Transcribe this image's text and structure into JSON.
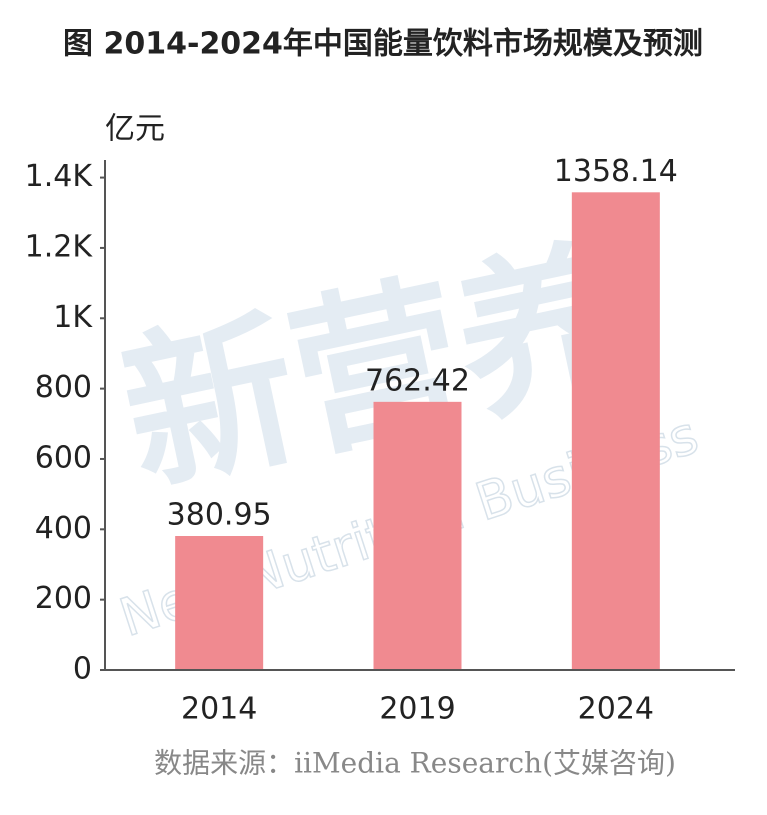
{
  "chart_data": {
    "type": "bar",
    "title": "图 2014-2024年中国能量饮料市场规模及预测",
    "y_label": "亿元",
    "categories": [
      "2014",
      "2019",
      "2024"
    ],
    "values": [
      380.95,
      762.42,
      1358.14
    ],
    "color": "#f08a90",
    "ylim": [
      0,
      1450
    ],
    "yticks": [
      0,
      200,
      400,
      600,
      800,
      {
        "value": 1000,
        "label": "1K"
      },
      {
        "value": 1200,
        "label": "1.2K"
      },
      {
        "value": 1400,
        "label": "1.4K"
      }
    ],
    "source": "数据来源：iiMedia Research(艾媒咨询)",
    "watermark": "新营养",
    "watermark_subtitle": "New Nutrition Business"
  }
}
